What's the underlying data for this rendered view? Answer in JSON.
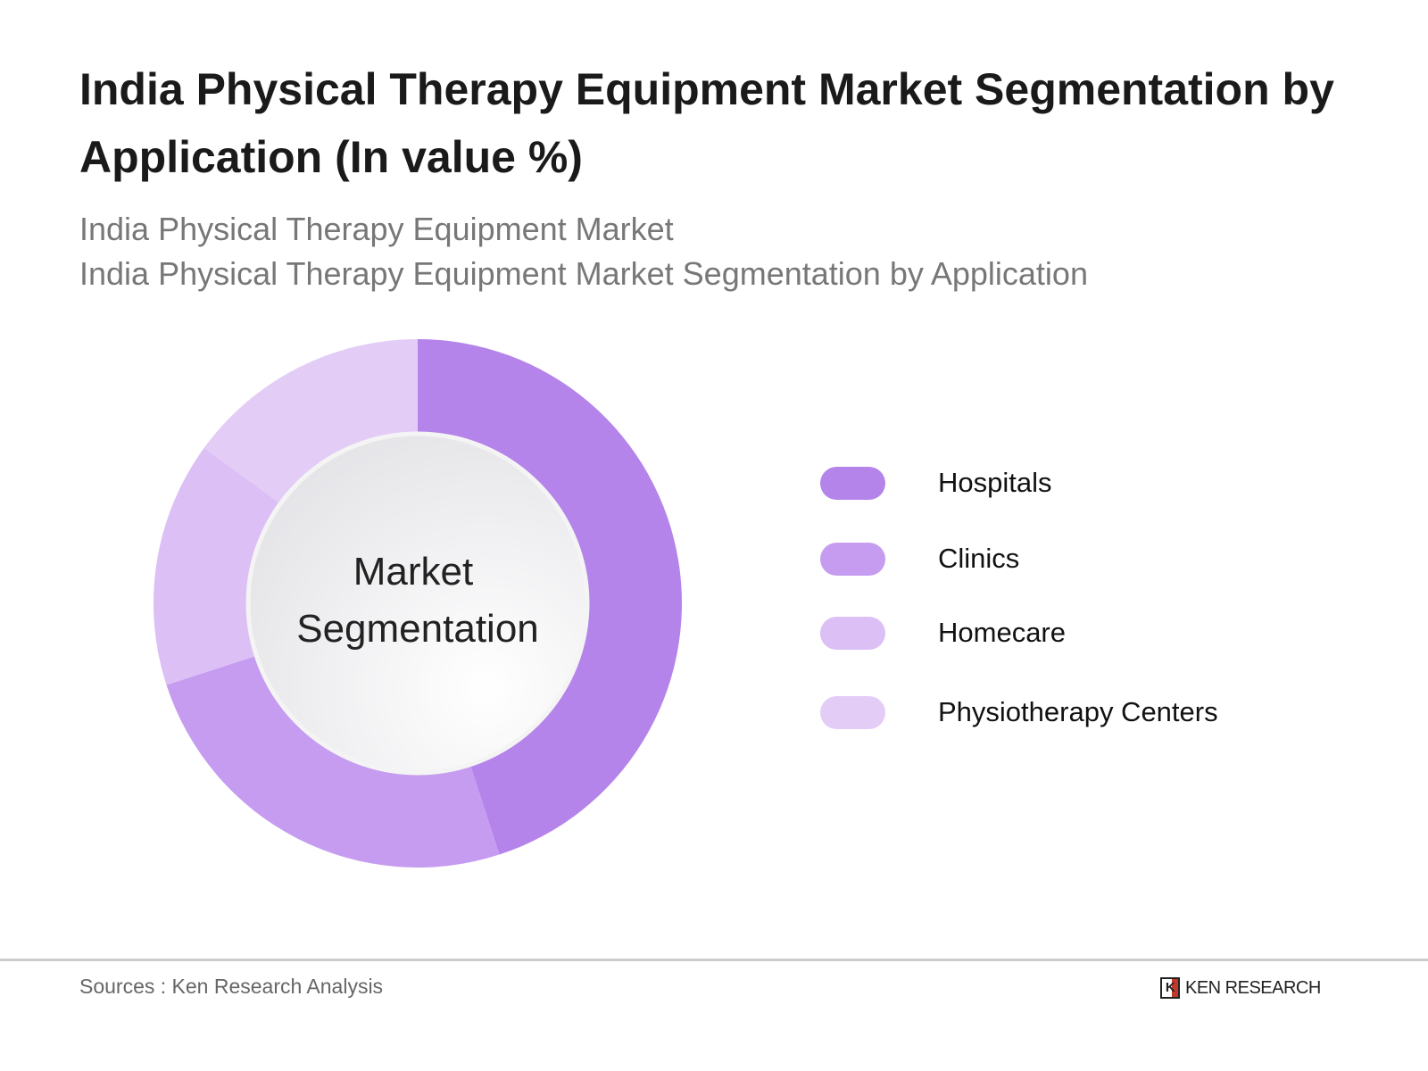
{
  "title": "India Physical Therapy Equipment Market Segmentation by Application (In value %)",
  "subtitle1": "India Physical Therapy Equipment Market",
  "subtitle2": "India Physical Therapy Equipment Market Segmentation by Application",
  "chart_data": {
    "type": "pie",
    "donut": true,
    "center_label": [
      "Market",
      "Segmentation"
    ],
    "categories": [
      "Hospitals",
      "Clinics",
      "Homecare",
      "Physiotherapy Centers"
    ],
    "values": [
      45,
      25,
      15,
      15
    ],
    "colors": [
      "#b484ea",
      "#c69cf0",
      "#dbbff5",
      "#e3cdf7"
    ],
    "legend_position": "right"
  },
  "footer": {
    "sources": "Sources : Ken Research Analysis",
    "logo": "KEN RESEARCH"
  }
}
